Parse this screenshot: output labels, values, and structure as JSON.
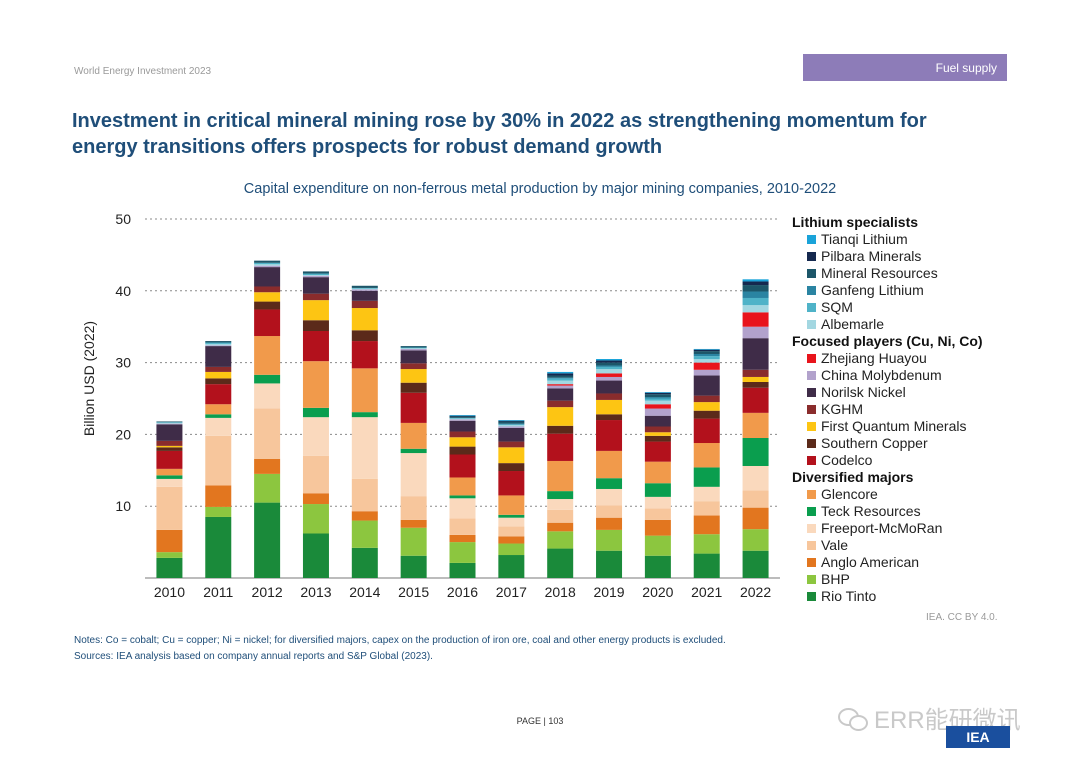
{
  "header": {
    "report_name": "World Energy Investment 2023",
    "section": "Fuel supply"
  },
  "headline": "Investment in critical mineral mining rose by 30% in 2022 as strengthening momentum for energy transitions offers prospects for robust demand growth",
  "credit": "IEA. CC BY 4.0.",
  "notes": {
    "note": "Notes: Co = cobalt; Cu = copper; Ni = nickel; for diversified majors, capex on the production of iron ore, coal and other energy products is excluded.",
    "sources": "Sources: IEA analysis based on company annual reports and S&P Global (2023)."
  },
  "page": {
    "label": "PAGE",
    "sep": " | ",
    "number": "103"
  },
  "watermark": {
    "text": "ERR能研微讯",
    "seal": "IEA"
  },
  "chart_data": {
    "type": "bar",
    "stacked": true,
    "title": "Capital expenditure on non-ferrous metal production by major mining companies, 2010-2022",
    "xlabel": "",
    "ylabel": "Billion USD (2022)",
    "ylim": [
      0,
      50
    ],
    "yticks": [
      10,
      20,
      30,
      40,
      50
    ],
    "grid": true,
    "legend_position": "right",
    "categories": [
      "2010",
      "2011",
      "2012",
      "2013",
      "2014",
      "2015",
      "2016",
      "2017",
      "2018",
      "2019",
      "2020",
      "2021",
      "2022"
    ],
    "legend_groups": [
      {
        "name": "Lithium specialists",
        "series": [
          "Tianqi Lithium",
          "Pilbara Minerals",
          "Mineral Resources",
          "Ganfeng Lithium",
          "SQM",
          "Albemarle"
        ]
      },
      {
        "name": "Focused players (Cu, Ni, Co)",
        "series": [
          "Zhejiang Huayou",
          "China Molybdenum",
          "Norilsk Nickel",
          "KGHM",
          "First Quantum Minerals",
          "Southern Copper",
          "Codelco"
        ]
      },
      {
        "name": "Diversified majors",
        "series": [
          "Glencore",
          "Teck Resources",
          "Freeport-McMoRan",
          "Vale",
          "Anglo American",
          "BHP",
          "Rio Tinto"
        ]
      }
    ],
    "series": [
      {
        "name": "Rio Tinto",
        "color": "#1a8a3a",
        "values": [
          2.8,
          8.5,
          10.5,
          6.2,
          4.2,
          3.1,
          2.1,
          3.2,
          4.1,
          3.8,
          3.1,
          3.4,
          3.8
        ]
      },
      {
        "name": "BHP",
        "color": "#8cc63f",
        "values": [
          0.8,
          1.4,
          4.0,
          4.1,
          3.8,
          3.9,
          2.9,
          1.6,
          2.4,
          2.9,
          2.8,
          2.7,
          3.0
        ]
      },
      {
        "name": "Anglo American",
        "color": "#e2761f",
        "values": [
          3.1,
          3.0,
          2.1,
          1.5,
          1.3,
          1.1,
          1.0,
          1.0,
          1.2,
          1.7,
          2.2,
          2.6,
          3.0
        ]
      },
      {
        "name": "Vale",
        "color": "#f7c69c",
        "values": [
          6.0,
          6.9,
          7.0,
          5.2,
          4.5,
          3.3,
          2.3,
          1.4,
          1.8,
          1.7,
          1.6,
          2.0,
          2.4
        ]
      },
      {
        "name": "Freeport-McMoRan",
        "color": "#fad9bd",
        "values": [
          1.1,
          2.5,
          3.5,
          5.4,
          8.6,
          6.0,
          2.8,
          1.2,
          1.5,
          2.3,
          1.6,
          2.0,
          3.4
        ]
      },
      {
        "name": "Teck Resources",
        "color": "#0a9e4e",
        "values": [
          0.5,
          0.5,
          1.2,
          1.3,
          0.7,
          0.6,
          0.4,
          0.4,
          1.1,
          1.5,
          1.9,
          2.7,
          3.9
        ]
      },
      {
        "name": "Glencore",
        "color": "#f19a4b",
        "values": [
          0.9,
          1.4,
          5.4,
          6.5,
          6.1,
          3.6,
          2.5,
          2.7,
          4.2,
          3.8,
          3.0,
          3.4,
          3.5
        ]
      },
      {
        "name": "Codelco",
        "color": "#b3111c",
        "values": [
          2.5,
          2.8,
          3.7,
          4.2,
          3.8,
          4.2,
          3.2,
          3.4,
          3.8,
          4.3,
          2.8,
          3.4,
          3.5
        ]
      },
      {
        "name": "Southern Copper",
        "color": "#5b2a1a",
        "values": [
          0.5,
          0.8,
          1.1,
          1.5,
          1.5,
          1.4,
          1.1,
          1.1,
          1.1,
          0.8,
          0.8,
          1.1,
          0.8
        ]
      },
      {
        "name": "First Quantum Minerals",
        "color": "#fdc513",
        "values": [
          0.2,
          0.9,
          1.3,
          2.8,
          3.1,
          1.9,
          1.3,
          2.2,
          2.6,
          2.0,
          0.5,
          1.2,
          0.7
        ]
      },
      {
        "name": "KGHM",
        "color": "#8a2c2c",
        "values": [
          0.7,
          0.7,
          0.8,
          0.9,
          1.0,
          0.8,
          0.8,
          0.8,
          0.9,
          0.9,
          0.8,
          0.9,
          1.0
        ]
      },
      {
        "name": "Norilsk Nickel",
        "color": "#3f2c48",
        "values": [
          2.3,
          2.9,
          2.7,
          2.3,
          1.4,
          1.8,
          1.5,
          1.9,
          1.7,
          1.8,
          1.5,
          2.8,
          4.4
        ]
      },
      {
        "name": "China Molybdenum",
        "color": "#b2a2cc",
        "values": [
          0.1,
          0.1,
          0.2,
          0.2,
          0.2,
          0.2,
          0.2,
          0.2,
          0.4,
          0.5,
          1.0,
          0.8,
          1.6
        ]
      },
      {
        "name": "Zhejiang Huayou",
        "color": "#e8141c",
        "values": [
          0.0,
          0.0,
          0.0,
          0.0,
          0.0,
          0.0,
          0.0,
          0.0,
          0.2,
          0.5,
          0.6,
          1.0,
          2.0
        ]
      },
      {
        "name": "Albemarle",
        "color": "#a3d7e1",
        "values": [
          0.1,
          0.2,
          0.2,
          0.1,
          0.1,
          0.1,
          0.1,
          0.2,
          0.5,
          0.6,
          0.5,
          0.5,
          1.0
        ]
      },
      {
        "name": "SQM",
        "color": "#4fb3c8",
        "values": [
          0.1,
          0.2,
          0.2,
          0.2,
          0.1,
          0.1,
          0.1,
          0.1,
          0.3,
          0.3,
          0.3,
          0.4,
          1.0
        ]
      },
      {
        "name": "Ganfeng Lithium",
        "color": "#2a84a2",
        "values": [
          0.0,
          0.0,
          0.0,
          0.0,
          0.0,
          0.0,
          0.0,
          0.1,
          0.1,
          0.2,
          0.2,
          0.3,
          0.9
        ]
      },
      {
        "name": "Mineral Resources",
        "color": "#1c5669",
        "values": [
          0.1,
          0.2,
          0.3,
          0.3,
          0.3,
          0.2,
          0.2,
          0.3,
          0.3,
          0.4,
          0.4,
          0.4,
          0.9
        ]
      },
      {
        "name": "Pilbara Minerals",
        "color": "#15294f",
        "values": [
          0.0,
          0.0,
          0.0,
          0.0,
          0.0,
          0.0,
          0.1,
          0.1,
          0.3,
          0.3,
          0.2,
          0.2,
          0.5
        ]
      },
      {
        "name": "Tianqi Lithium",
        "color": "#1aa3d9",
        "values": [
          0.0,
          0.0,
          0.0,
          0.0,
          0.0,
          0.0,
          0.1,
          0.1,
          0.2,
          0.2,
          0.1,
          0.1,
          0.3
        ]
      }
    ]
  }
}
